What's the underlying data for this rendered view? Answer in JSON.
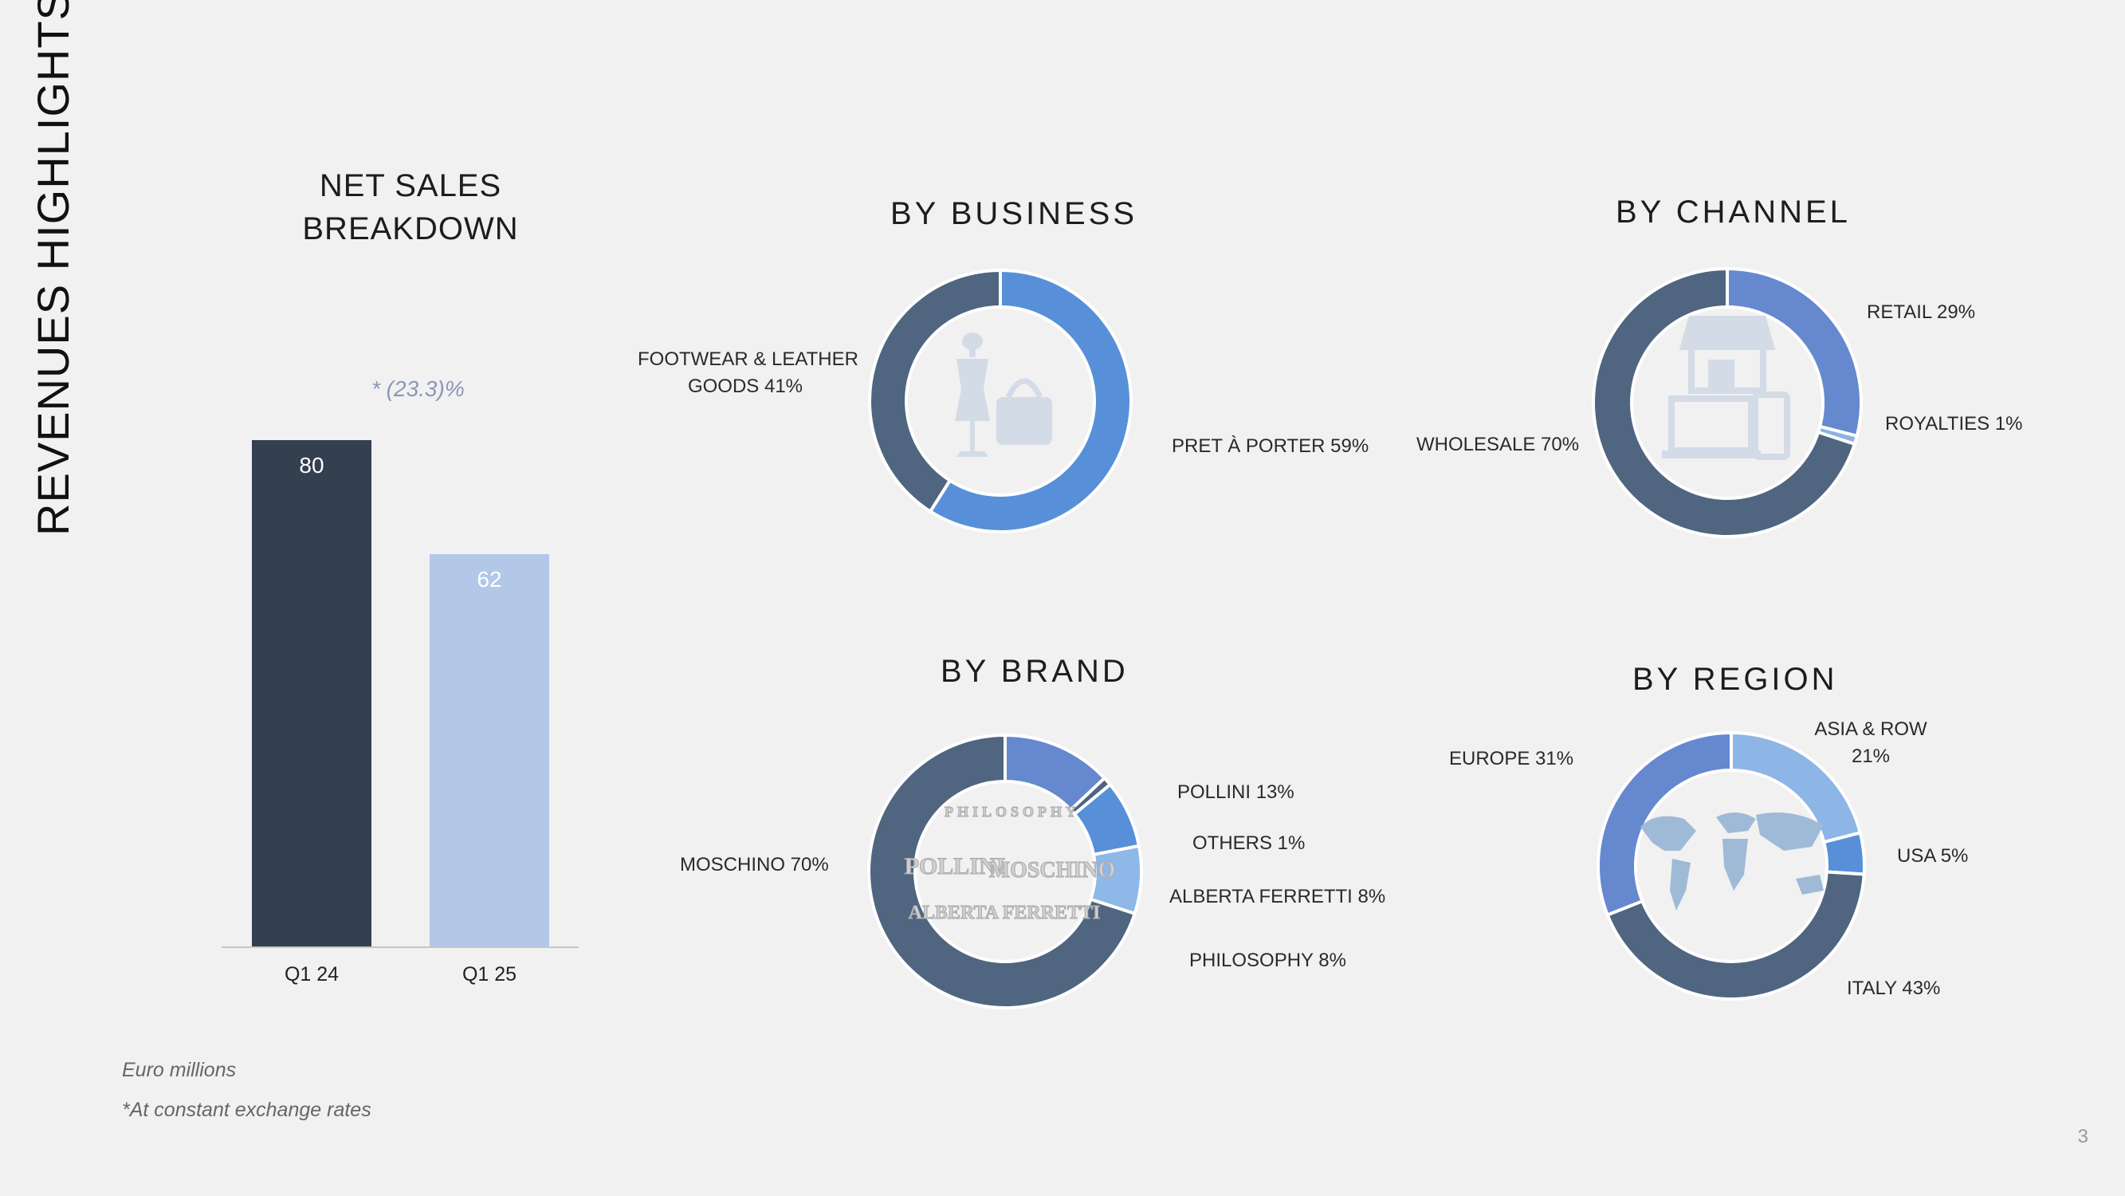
{
  "page_title": "REVENUES HIGHLIGHTS",
  "page_number": "3",
  "notes": {
    "unit": "Euro millions",
    "footnote": "*At constant exchange rates"
  },
  "net_sales": {
    "title_line1": "NET SALES",
    "title_line2": "BREAKDOWN",
    "growth_label": "* (23.3)%"
  },
  "brand_logos": [
    "PHILOSOPHY",
    "POLLINI",
    "MOSCHINO",
    "ALBERTA FERRETTI"
  ],
  "chart_data": [
    {
      "type": "bar",
      "categories": [
        "Q1 24",
        "Q1 25"
      ],
      "values": [
        80,
        62
      ],
      "colors": [
        "#343f50",
        "#b3c7e8"
      ],
      "annotation": "* (23.3)%",
      "ylim": [
        0,
        80
      ]
    },
    {
      "type": "pie",
      "title": "BY BUSINESS",
      "labels": [
        "PRET À PORTER 59%",
        "FOOTWEAR & LEATHER GOODS 41%"
      ],
      "label_lines": [
        [
          "PRET À PORTER 59%"
        ],
        [
          "FOOTWEAR & LEATHER",
          "GOODS 41%"
        ]
      ],
      "values": [
        59,
        41
      ],
      "colors": [
        "#5790d8",
        "#4f6580"
      ],
      "icon": "mannequin-and-bag-icon"
    },
    {
      "type": "pie",
      "title": "BY CHANNEL",
      "labels": [
        "RETAIL 29%",
        "ROYALTIES 1%",
        "WHOLESALE 70%"
      ],
      "values": [
        29,
        1,
        70
      ],
      "colors": [
        "#6688cf",
        "#8db1e3",
        "#4f6580"
      ],
      "icon": "store-and-devices-icon"
    },
    {
      "type": "pie",
      "title": "BY BRAND",
      "labels": [
        "POLLINI 13%",
        "OTHERS 1%",
        "ALBERTA FERRETTI 8%",
        "PHILOSOPHY 8%",
        "MOSCHINO 70%"
      ],
      "values": [
        13,
        1,
        8,
        8,
        70
      ],
      "colors": [
        "#6688cf",
        "#4f6580",
        "#5790d8",
        "#8db8e8",
        "#4f6580"
      ],
      "icon": "brand-logos"
    },
    {
      "type": "pie",
      "title": "BY REGION",
      "labels": [
        "ASIA & ROW 21%",
        "USA 5%",
        "ITALY 43%",
        "EUROPE 31%"
      ],
      "label_lines": [
        [
          "ASIA & ROW",
          "21%"
        ],
        [
          "USA 5%"
        ],
        [
          "ITALY 43%"
        ],
        [
          "EUROPE 31%"
        ]
      ],
      "values": [
        21,
        5,
        43,
        31
      ],
      "colors": [
        "#8db5e5",
        "#5790d8",
        "#4f6580",
        "#6688cf"
      ],
      "icon": "world-map-icon"
    }
  ]
}
